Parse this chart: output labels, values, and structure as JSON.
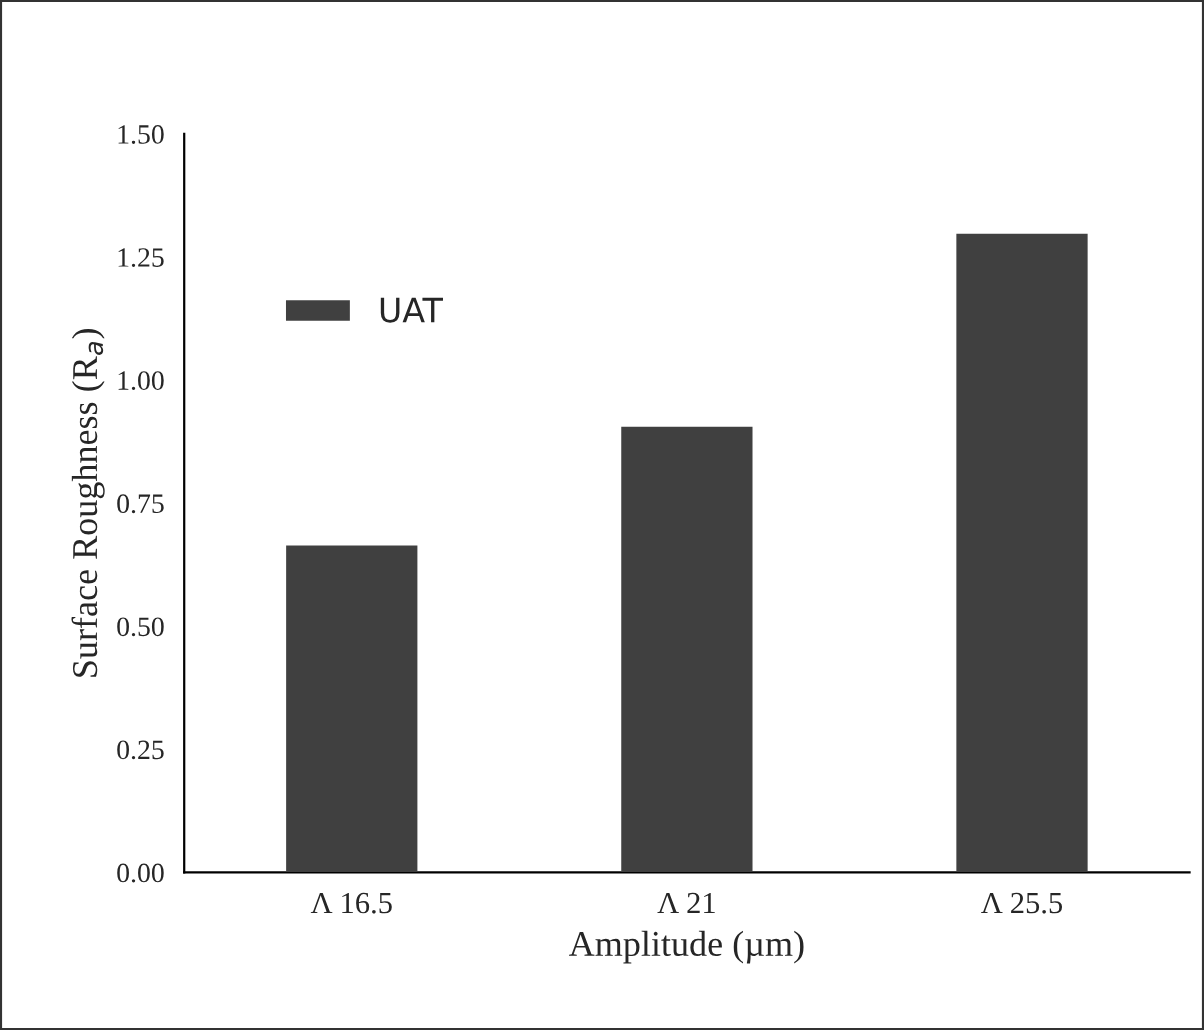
{
  "chart_data": {
    "type": "bar",
    "xlabel": "Amplitude (µm)",
    "ylabel": "Surface Roughness (R$_{a}$)",
    "categories": [
      "Λ 16.5",
      "Λ 21",
      "Λ 25.5"
    ],
    "series": [
      {
        "name": "UAT",
        "color": "#404040",
        "values": [
          0.667,
          0.908,
          1.3
        ]
      }
    ],
    "ylim": [
      0,
      1.5
    ],
    "yticks": [
      {
        "value": 0,
        "label": "0.00"
      },
      {
        "value": 0.25,
        "label": "0.25"
      },
      {
        "value": 0.5,
        "label": "0.50"
      },
      {
        "value": 0.75,
        "label": "0.75"
      },
      {
        "value": 1.0,
        "label": "1.00"
      },
      {
        "value": 1.25,
        "label": "1.25"
      },
      {
        "value": 1.5,
        "label": "1.50"
      }
    ],
    "grid": false,
    "legend": "top left"
  }
}
